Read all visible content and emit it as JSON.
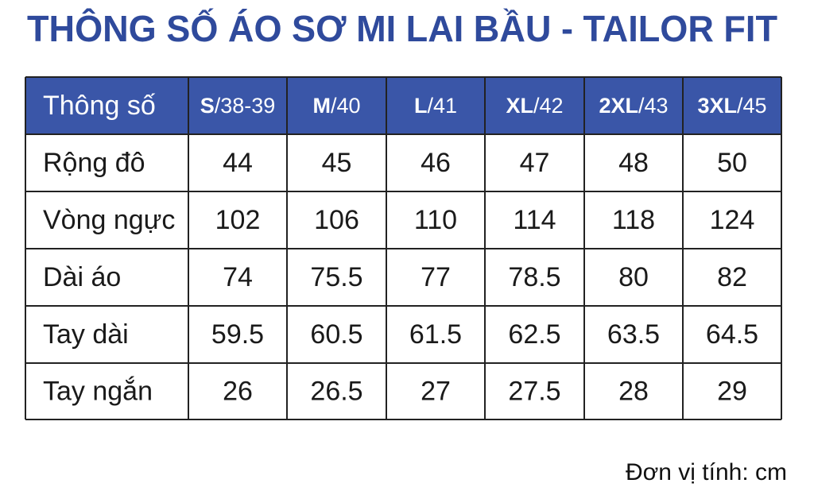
{
  "title": "THÔNG SỐ ÁO SƠ MI LAI BẦU - TAILOR FIT",
  "table": {
    "header": {
      "label": "Thông số",
      "columns": [
        {
          "size": "S",
          "measure": "/38-39"
        },
        {
          "size": "M",
          "measure": "/40"
        },
        {
          "size": "L",
          "measure": "/41"
        },
        {
          "size": "XL",
          "measure": "/42"
        },
        {
          "size": "2XL",
          "measure": "/43"
        },
        {
          "size": "3XL",
          "measure": "/45"
        }
      ]
    },
    "rows": [
      {
        "label": "Rộng đô",
        "values": [
          44,
          45,
          46,
          47,
          48,
          50
        ]
      },
      {
        "label": "Vòng ngực",
        "values": [
          102,
          106,
          110,
          114,
          118,
          124
        ]
      },
      {
        "label": "Dài áo",
        "values": [
          74,
          75.5,
          77,
          78.5,
          80,
          82
        ]
      },
      {
        "label": "Tay dài",
        "values": [
          59.5,
          60.5,
          61.5,
          62.5,
          63.5,
          64.5
        ]
      },
      {
        "label": "Tay ngắn",
        "values": [
          26,
          26.5,
          27,
          27.5,
          28,
          29
        ]
      }
    ]
  },
  "note": "Đơn vị tính: cm"
}
